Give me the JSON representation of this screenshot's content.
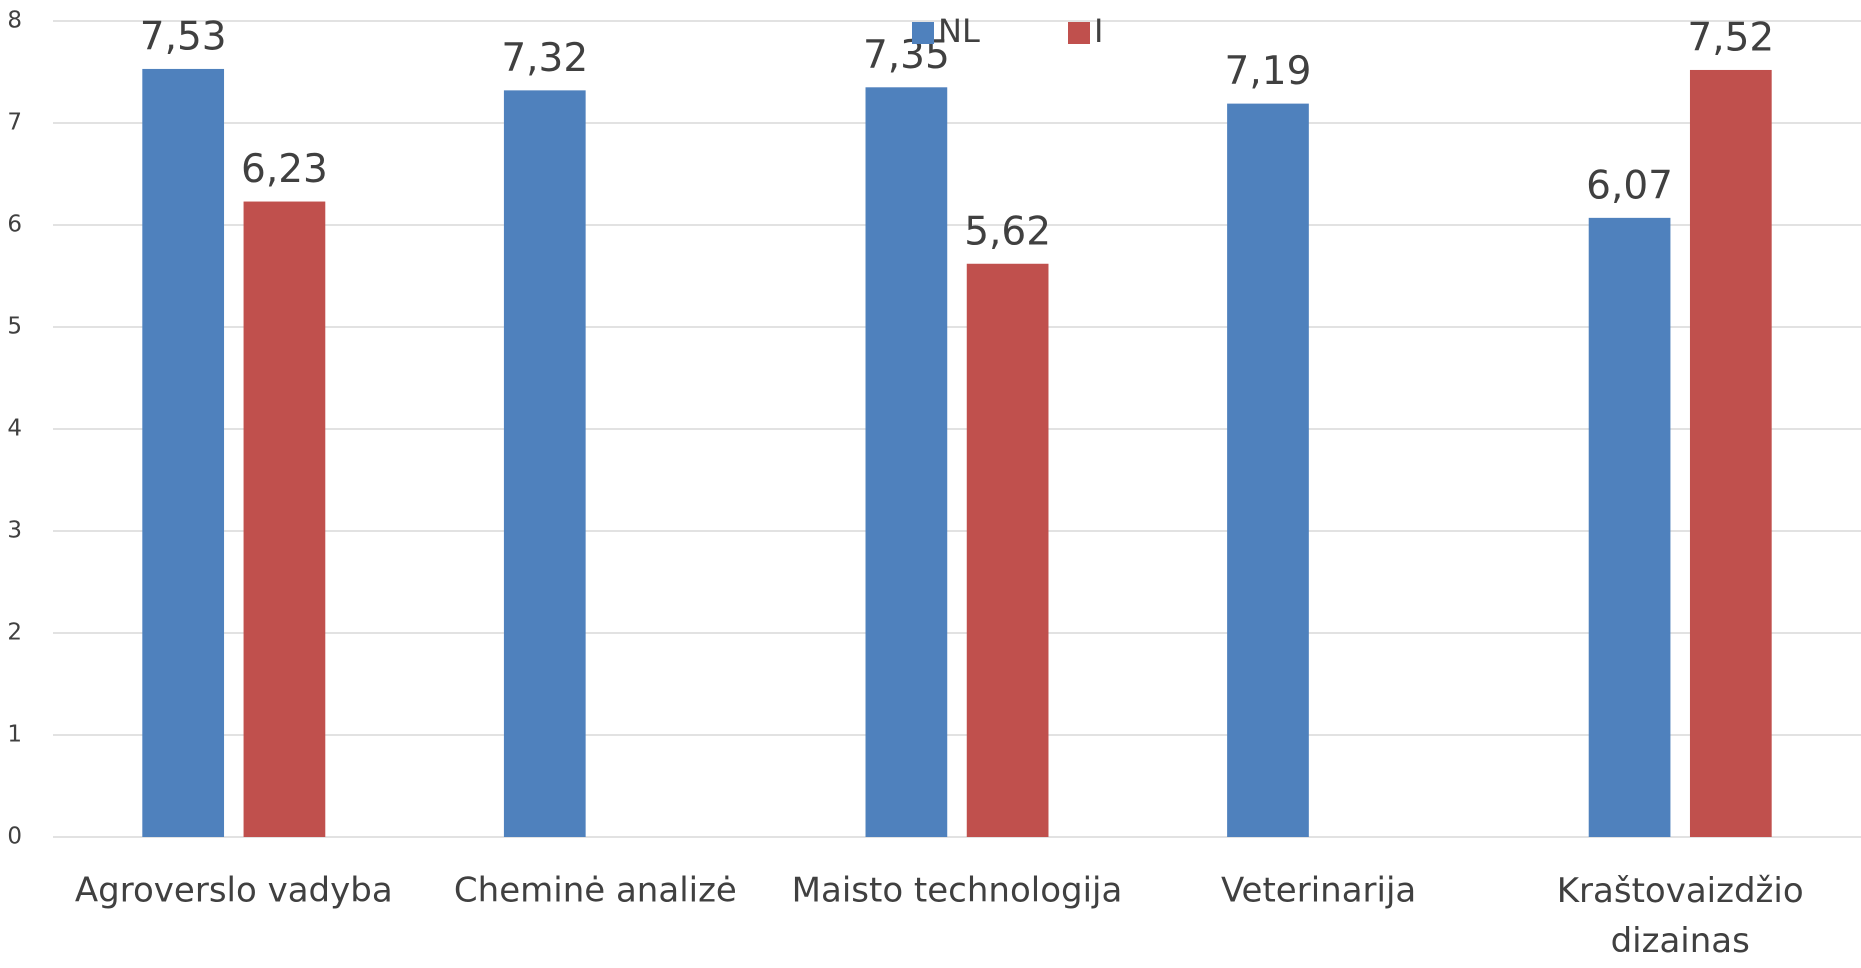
{
  "chart_data": {
    "type": "bar",
    "categories": [
      "Agroverslo vadyba",
      "Cheminė analizė",
      "Maisto technologija",
      "Veterinarija",
      "Kraštovaizdžio dizainas"
    ],
    "series": [
      {
        "name": "NL",
        "color": "#4f81bd",
        "values": [
          7.53,
          7.32,
          7.35,
          7.19,
          6.07
        ],
        "value_labels": [
          "7,53",
          "7,32",
          "7,35",
          "7,19",
          "6,07"
        ]
      },
      {
        "name": "I",
        "color": "#c0504d",
        "values": [
          6.23,
          null,
          5.62,
          null,
          7.52
        ],
        "value_labels": [
          "6,23",
          null,
          "5,62",
          null,
          "7,52"
        ]
      }
    ],
    "ylim": [
      0,
      8
    ],
    "yticks": [
      0,
      1,
      2,
      3,
      4,
      5,
      6,
      7,
      8
    ],
    "grid": true,
    "legend": "top"
  }
}
